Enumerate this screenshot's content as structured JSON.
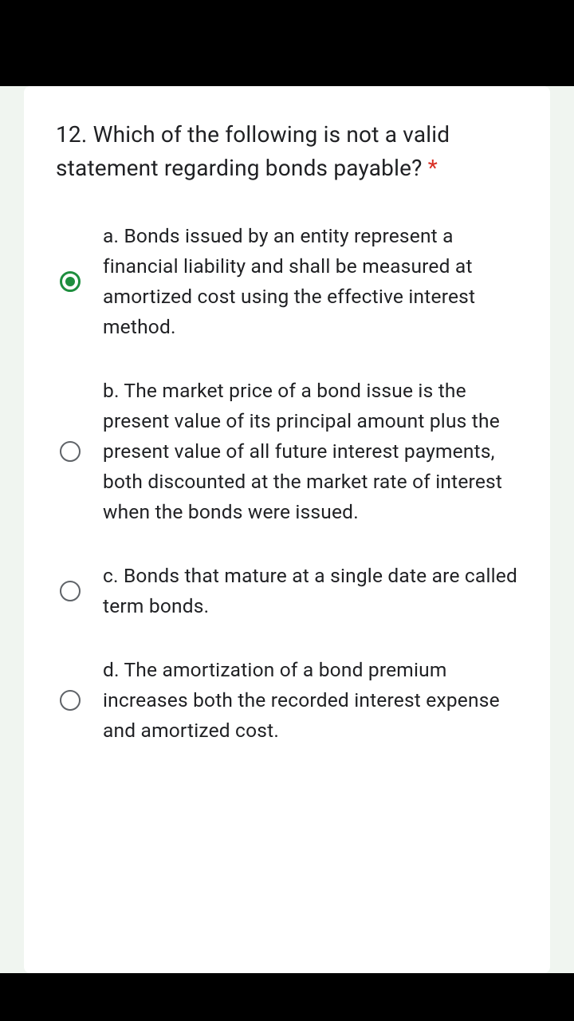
{
  "question": {
    "text": "12. Which of the following is not a valid statement regarding bonds payable?",
    "required_marker": "*"
  },
  "options": [
    {
      "text": "a. Bonds issued by an entity represent a financial liability and shall be measured at amortized cost using the effective interest method.",
      "selected": true
    },
    {
      "text": "b. The market price of a bond issue is the present value of its principal amount plus the present value of all future interest payments, both discounted at the market rate of interest when the bonds were issued.",
      "selected": false
    },
    {
      "text": "c. Bonds that mature at a single date are called term bonds.",
      "selected": false
    },
    {
      "text": "d. The amortization of a bond premium increases both the recorded interest expense and amortized cost.",
      "selected": false
    }
  ],
  "colors": {
    "background": "#f0f5f0",
    "card_bg": "#ffffff",
    "text": "#202124",
    "required": "#d93025",
    "radio_unselected": "#5f6368",
    "radio_selected": "#1e8e3e",
    "black_bar": "#000000"
  }
}
